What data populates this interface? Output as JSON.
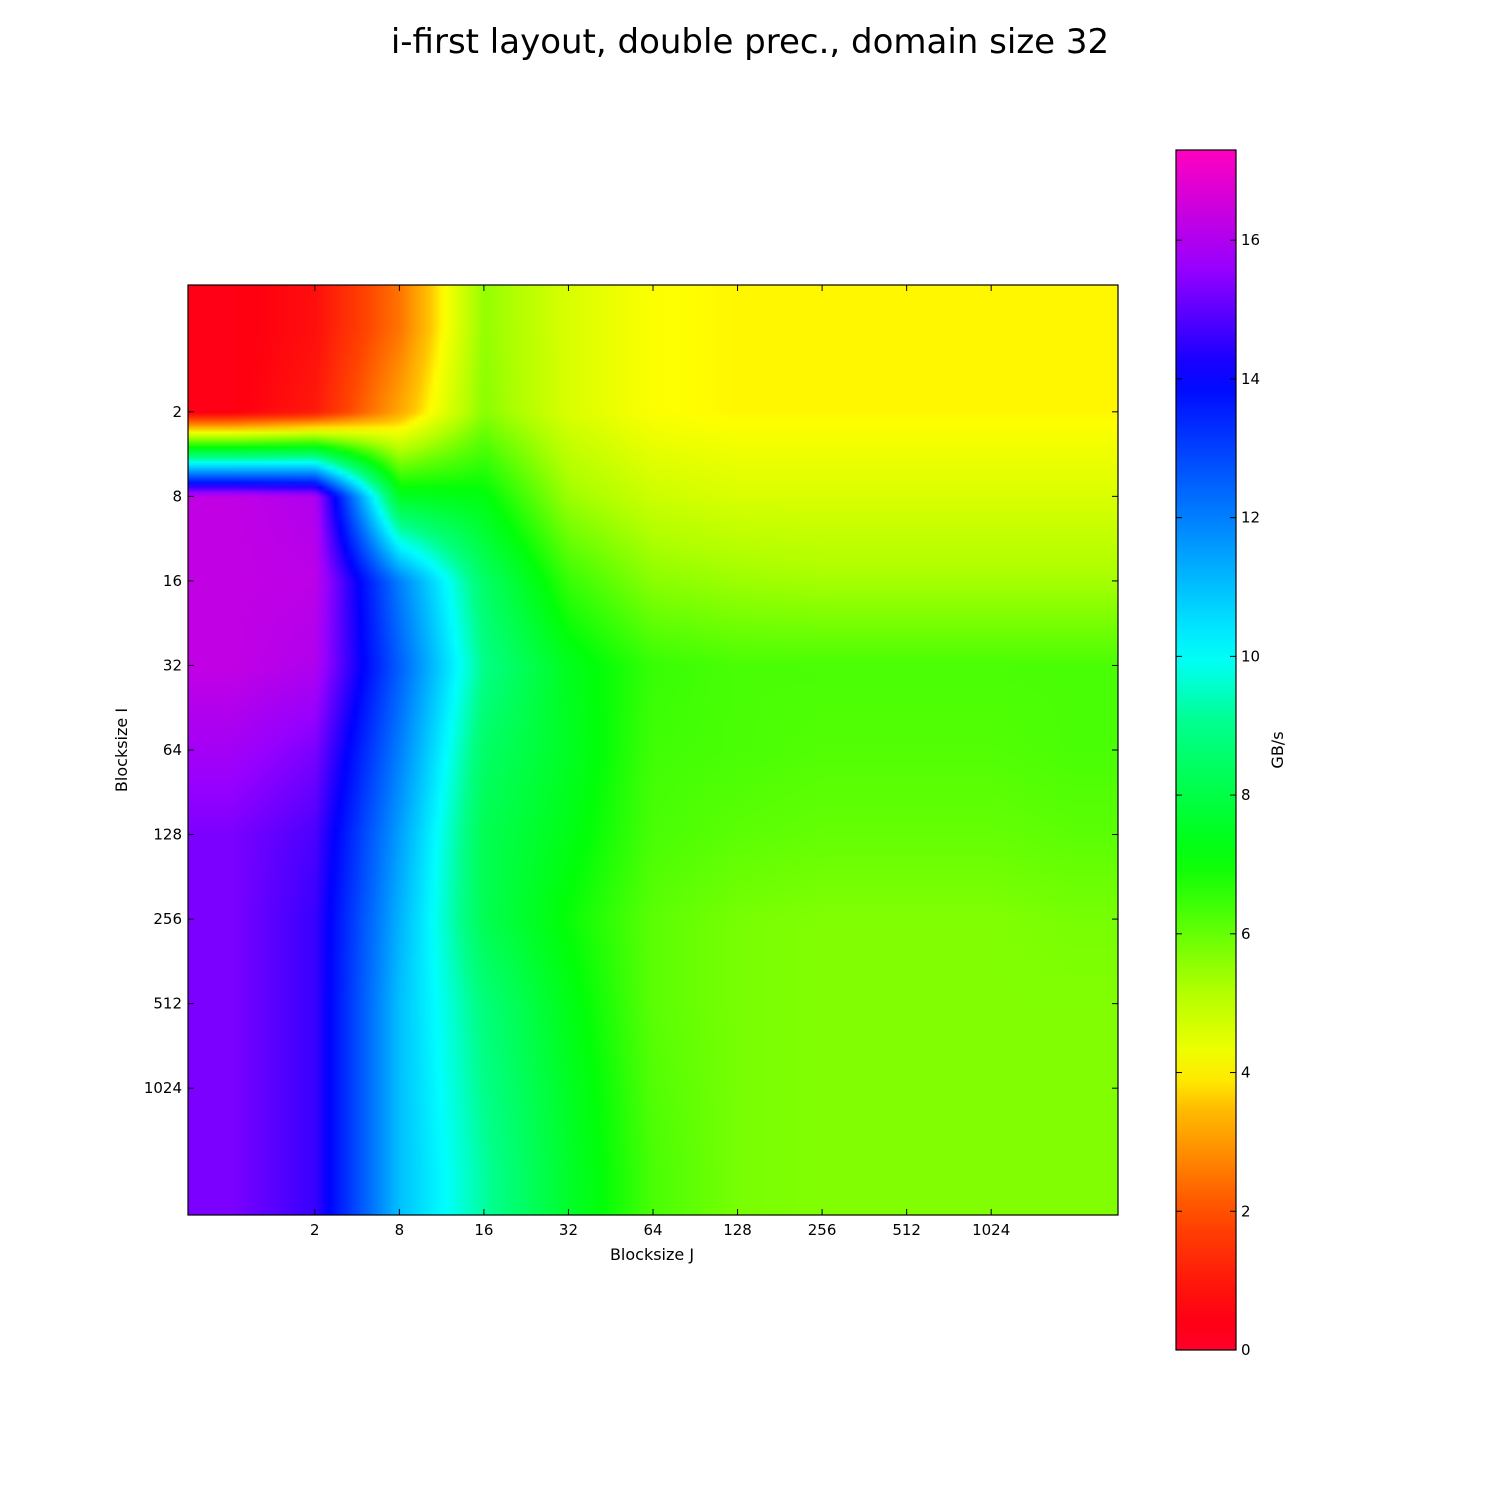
{
  "chart_data": {
    "type": "heatmap",
    "title": "i-first layout, double prec., domain size 32",
    "xlabel": "Blocksize J",
    "ylabel": "Blocksize I",
    "x_ticks": [
      "2",
      "8",
      "16",
      "32",
      "64",
      "128",
      "256",
      "512",
      "1024"
    ],
    "y_ticks": [
      "2",
      "8",
      "16",
      "32",
      "64",
      "128",
      "256",
      "512",
      "1024"
    ],
    "colorbar": {
      "label": "GB/s",
      "range": [
        0,
        17.3
      ],
      "ticks": [
        "0",
        "2",
        "4",
        "6",
        "8",
        "10",
        "12",
        "14",
        "16"
      ],
      "colormap": "gist_rainbow"
    },
    "grid_columns": [
      "1",
      "2",
      "4",
      "8",
      "16",
      "32",
      "64",
      "128",
      "256",
      "512",
      "1024"
    ],
    "grid_rows": [
      "1",
      "2",
      "4",
      "8",
      "16",
      "32",
      "64",
      "128",
      "256",
      "512",
      "1024"
    ],
    "values": [
      [
        0.4,
        0.8,
        2.5,
        5.5,
        4.6,
        4.1,
        4.0,
        4.0,
        4.0,
        4.0,
        4.0
      ],
      [
        0.4,
        1.0,
        3.2,
        5.6,
        4.6,
        4.1,
        4.0,
        4.0,
        4.0,
        4.0,
        4.0
      ],
      [
        16.3,
        16.0,
        7.5,
        7.2,
        5.4,
        4.8,
        4.6,
        4.6,
        4.6,
        4.6,
        4.6
      ],
      [
        16.3,
        16.2,
        12.0,
        8.5,
        6.5,
        5.6,
        5.4,
        5.3,
        5.3,
        5.3,
        5.3
      ],
      [
        16.3,
        16.0,
        12.5,
        9.0,
        7.4,
        6.5,
        6.3,
        6.3,
        6.3,
        6.3,
        6.3
      ],
      [
        15.8,
        15.3,
        12.0,
        8.5,
        7.5,
        6.4,
        6.3,
        6.2,
        6.2,
        6.2,
        6.3
      ],
      [
        15.3,
        14.8,
        11.5,
        8.2,
        7.3,
        6.3,
        6.1,
        6.0,
        6.0,
        6.0,
        6.1
      ],
      [
        15.3,
        14.6,
        11.2,
        8.2,
        7.0,
        6.1,
        5.8,
        5.7,
        5.7,
        5.7,
        5.8
      ],
      [
        15.3,
        14.6,
        11.0,
        8.8,
        7.3,
        6.1,
        5.8,
        5.7,
        5.7,
        5.7,
        5.7
      ],
      [
        15.3,
        14.6,
        11.0,
        9.0,
        7.5,
        6.2,
        5.8,
        5.7,
        5.7,
        5.7,
        5.7
      ],
      [
        15.3,
        14.6,
        11.0,
        9.2,
        7.6,
        6.3,
        5.8,
        5.7,
        5.7,
        5.7,
        5.7
      ]
    ]
  }
}
